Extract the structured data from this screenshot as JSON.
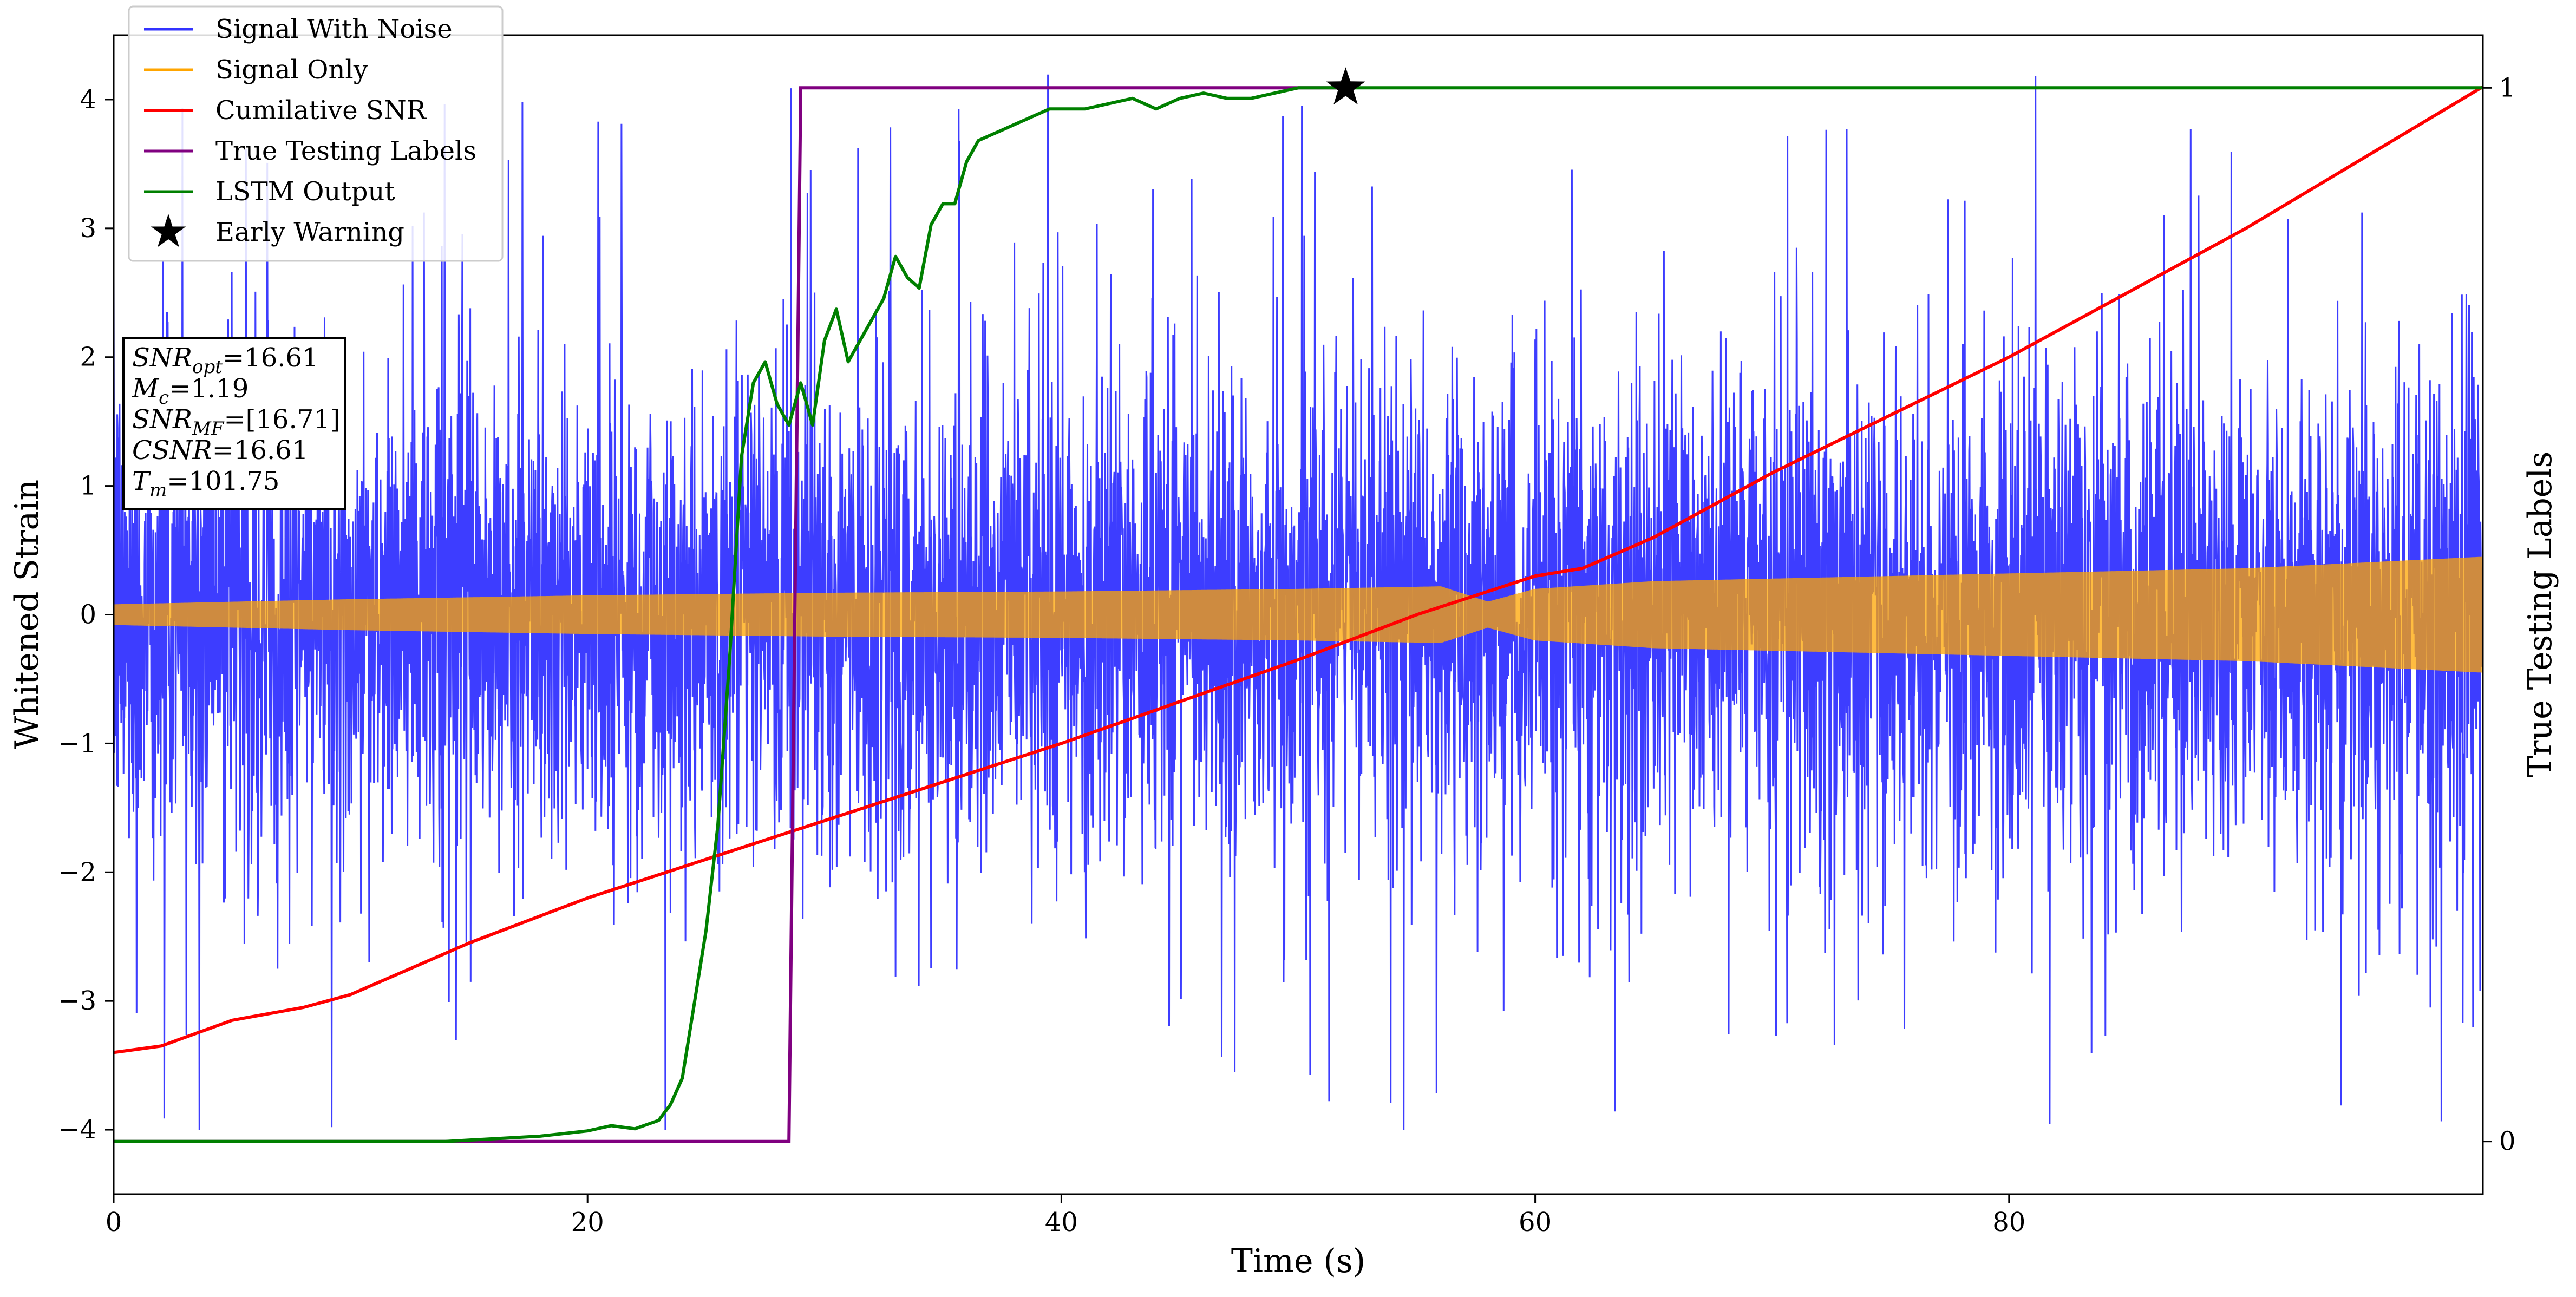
{
  "chart_data": {
    "type": "line",
    "xlabel": "Time (s)",
    "ylabel": "Whitened Strain",
    "y2label": "True Testing Labels",
    "xlim": [
      0,
      100
    ],
    "ylim": [
      -4.5,
      4.5
    ],
    "y2lim": [
      -0.05,
      1.05
    ],
    "x_ticks": [
      0,
      20,
      40,
      60,
      80
    ],
    "y_ticks": [
      -4,
      -3,
      -2,
      -1,
      0,
      1,
      2,
      3,
      4
    ],
    "y2_ticks": [
      0,
      1
    ],
    "legend_position": "top-left",
    "grid": false,
    "series": [
      {
        "name": "Signal With Noise",
        "axis": "left",
        "color": "#3333ff",
        "description_stats": {
          "typical_range": [
            -1.5,
            1.5
          ],
          "peak_range": [
            -4.0,
            4.2
          ]
        }
      },
      {
        "name": "Signal Only",
        "axis": "left",
        "color": "#ffa500",
        "envelope": {
          "x": [
            0,
            10,
            20,
            30,
            40,
            50,
            56,
            58,
            60,
            65,
            70,
            80,
            90,
            100
          ],
          "amp": [
            0.08,
            0.12,
            0.15,
            0.17,
            0.18,
            0.2,
            0.22,
            0.1,
            0.2,
            0.26,
            0.28,
            0.32,
            0.36,
            0.45
          ]
        }
      },
      {
        "name": "Cumilative SNR",
        "axis": "left",
        "color": "#ff0000",
        "x": [
          0,
          2,
          5,
          8,
          10,
          15,
          20,
          25,
          30,
          40,
          50,
          55,
          60,
          62,
          65,
          70,
          80,
          90,
          95,
          100
        ],
        "y": [
          -3.4,
          -3.35,
          -3.15,
          -3.05,
          -2.95,
          -2.55,
          -2.2,
          -1.9,
          -1.6,
          -1.0,
          -0.35,
          0.0,
          0.3,
          0.36,
          0.6,
          1.1,
          2.0,
          3.0,
          3.55,
          4.1
        ]
      },
      {
        "name": "True Testing Labels",
        "axis": "right",
        "color": "#800080",
        "x": [
          0,
          28.5,
          29,
          52
        ],
        "y": [
          0,
          0,
          1,
          1
        ]
      },
      {
        "name": "LSTM Output",
        "axis": "right",
        "color": "#008000",
        "x": [
          0,
          14,
          18,
          20,
          21,
          22,
          23,
          23.5,
          24,
          24.5,
          25,
          25.5,
          26,
          26.5,
          27,
          27.5,
          28,
          28.5,
          29,
          29.5,
          30,
          30.5,
          31,
          31.5,
          32,
          32.5,
          33,
          33.5,
          34,
          34.5,
          35,
          35.5,
          36,
          36.5,
          37,
          37.5,
          38,
          38.5,
          39,
          39.5,
          40,
          41,
          42,
          43,
          44,
          45,
          46,
          47,
          48,
          49,
          50,
          51,
          52,
          55,
          100
        ],
        "y": [
          0,
          0,
          0.005,
          0.01,
          0.015,
          0.012,
          0.02,
          0.035,
          0.06,
          0.13,
          0.2,
          0.3,
          0.46,
          0.65,
          0.72,
          0.74,
          0.7,
          0.68,
          0.72,
          0.68,
          0.76,
          0.79,
          0.74,
          0.76,
          0.78,
          0.8,
          0.84,
          0.82,
          0.81,
          0.87,
          0.89,
          0.89,
          0.93,
          0.95,
          0.955,
          0.96,
          0.965,
          0.97,
          0.975,
          0.98,
          0.98,
          0.98,
          0.985,
          0.99,
          0.98,
          0.99,
          0.995,
          0.99,
          0.99,
          0.995,
          1.0,
          1.0,
          1.0,
          1.0,
          1.0
        ]
      }
    ],
    "early_warning": {
      "name": "Early Warning",
      "x": 52,
      "y": 1.0,
      "axis": "right"
    },
    "info_box": {
      "lines": [
        {
          "label": "SNR",
          "sub": "opt",
          "value": "=16.61"
        },
        {
          "label": "M",
          "sub": "c",
          "value": "=1.19"
        },
        {
          "label": "SNR",
          "sub": "MF",
          "value": "=[16.71]"
        },
        {
          "label": "CSNR",
          "sub": "",
          "value": "=16.61"
        },
        {
          "label": "T",
          "sub": "m",
          "value": "=101.75"
        }
      ]
    }
  }
}
